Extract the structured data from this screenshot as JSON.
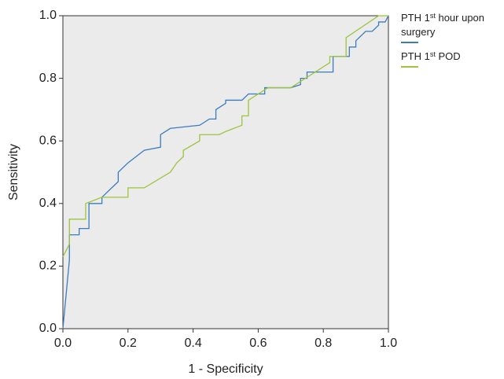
{
  "chart_data": {
    "type": "line",
    "xlabel": "1 - Specificity",
    "ylabel": "Sensitivity",
    "xlim": [
      0,
      1
    ],
    "ylim": [
      0,
      1
    ],
    "xticks": [
      {
        "value": 0,
        "label": "0.0"
      },
      0.2,
      0.4,
      0.6,
      0.8,
      {
        "value": 1,
        "label": "1.0"
      }
    ],
    "yticks": [
      {
        "value": 0,
        "label": "0.0"
      },
      0.2,
      0.4,
      0.6,
      0.8,
      {
        "value": 1,
        "label": "1.0"
      }
    ],
    "series": [
      {
        "name": "PTH 1st hour upon surgery",
        "color": "#3b7cc0",
        "x": [
          0,
          0.02,
          0.02,
          0.05,
          0.05,
          0.08,
          0.08,
          0.12,
          0.12,
          0.15,
          0.17,
          0.17,
          0.2,
          0.25,
          0.3,
          0.3,
          0.33,
          0.42,
          0.45,
          0.47,
          0.47,
          0.5,
          0.5,
          0.55,
          0.57,
          0.62,
          0.62,
          0.7,
          0.73,
          0.73,
          0.75,
          0.75,
          0.83,
          0.83,
          0.88,
          0.88,
          0.9,
          0.9,
          0.93,
          0.95,
          0.97,
          0.97,
          0.99,
          1.0
        ],
        "values": [
          0,
          0.22,
          0.3,
          0.3,
          0.32,
          0.32,
          0.4,
          0.4,
          0.42,
          0.45,
          0.47,
          0.5,
          0.53,
          0.57,
          0.58,
          0.62,
          0.64,
          0.65,
          0.67,
          0.67,
          0.7,
          0.72,
          0.73,
          0.73,
          0.75,
          0.75,
          0.77,
          0.77,
          0.78,
          0.8,
          0.8,
          0.82,
          0.82,
          0.87,
          0.87,
          0.9,
          0.9,
          0.92,
          0.95,
          0.95,
          0.97,
          0.98,
          0.98,
          1.0
        ]
      },
      {
        "name": "PTH 1st POD",
        "color": "#9cc43c",
        "x": [
          0,
          0.02,
          0.02,
          0.07,
          0.07,
          0.12,
          0.2,
          0.2,
          0.25,
          0.33,
          0.35,
          0.37,
          0.37,
          0.42,
          0.42,
          0.48,
          0.5,
          0.55,
          0.55,
          0.57,
          0.57,
          0.6,
          0.63,
          0.7,
          0.82,
          0.82,
          0.87,
          0.87,
          0.97,
          1.0
        ],
        "values": [
          0.23,
          0.27,
          0.35,
          0.35,
          0.4,
          0.42,
          0.42,
          0.45,
          0.45,
          0.5,
          0.53,
          0.55,
          0.57,
          0.6,
          0.62,
          0.62,
          0.63,
          0.65,
          0.68,
          0.68,
          0.73,
          0.75,
          0.77,
          0.77,
          0.85,
          0.87,
          0.87,
          0.93,
          1.0,
          1.0
        ]
      }
    ]
  }
}
